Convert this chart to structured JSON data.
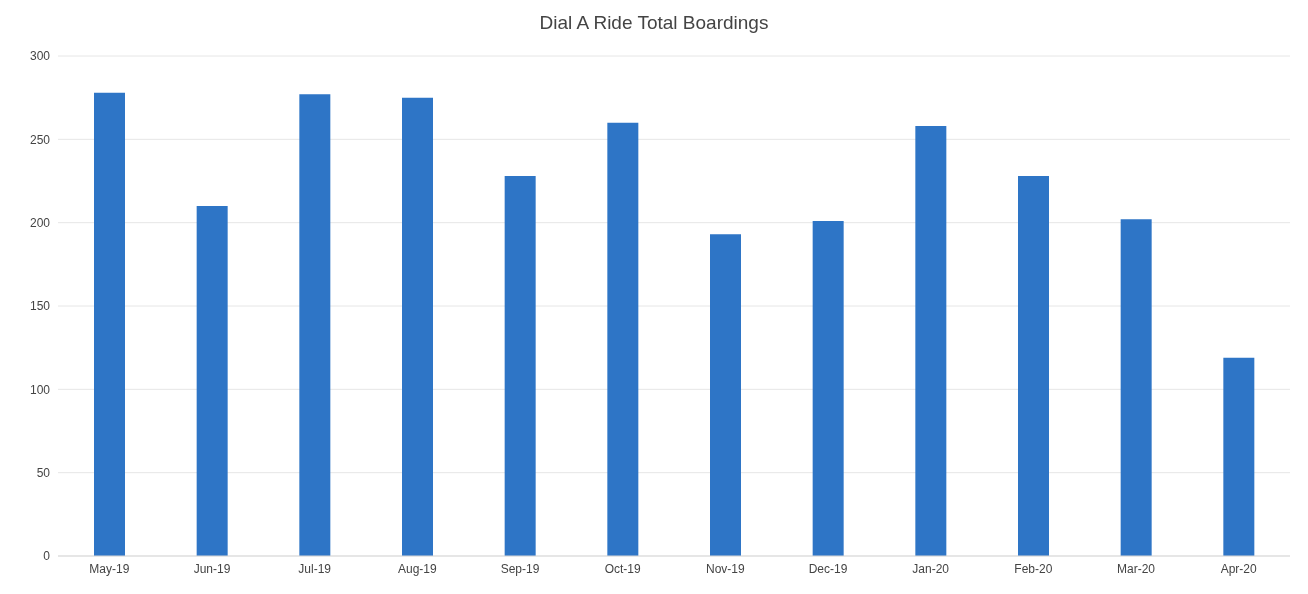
{
  "chart_data": {
    "type": "bar",
    "title": "Dial A Ride Total Boardings",
    "categories": [
      "May-19",
      "Jun-19",
      "Jul-19",
      "Aug-19",
      "Sep-19",
      "Oct-19",
      "Nov-19",
      "Dec-19",
      "Jan-20",
      "Feb-20",
      "Mar-20",
      "Apr-20"
    ],
    "values": [
      278,
      210,
      277,
      275,
      228,
      260,
      193,
      201,
      258,
      228,
      202,
      119
    ],
    "color": "#2e75c6",
    "ylim": [
      0,
      300
    ],
    "yticks": [
      0,
      50,
      100,
      150,
      200,
      250,
      300
    ],
    "grid": "y"
  }
}
